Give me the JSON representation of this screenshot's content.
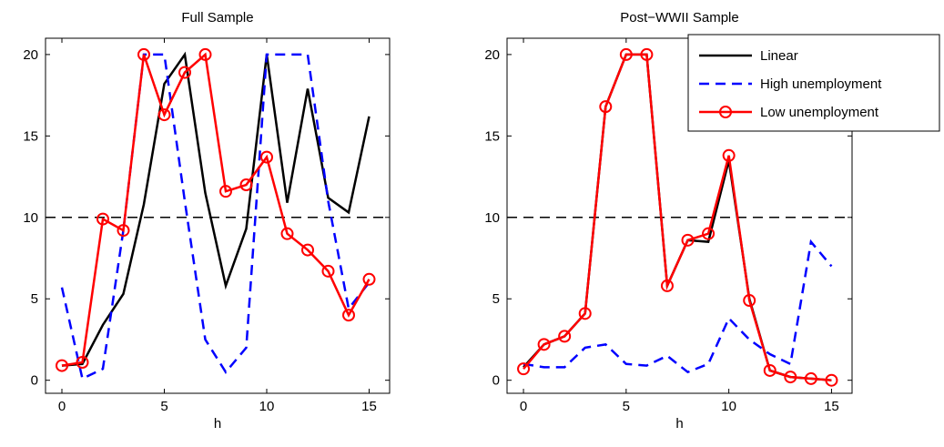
{
  "chart_data": [
    {
      "type": "line",
      "title": "Full Sample",
      "xlabel": "h",
      "ylabel": "",
      "xlim": [
        -0.8,
        16
      ],
      "ylim": [
        -0.8,
        21
      ],
      "xticks": [
        0,
        5,
        10,
        15
      ],
      "yticks": [
        0,
        5,
        10,
        15,
        20
      ],
      "x": [
        0,
        1,
        2,
        3,
        4,
        5,
        6,
        7,
        8,
        9,
        10,
        11,
        12,
        13,
        14,
        15
      ],
      "reference_line": {
        "y": 10,
        "style": "dashed",
        "color": "#000000"
      },
      "series": [
        {
          "name": "Linear",
          "color": "#000000",
          "style": "solid",
          "marker": "none",
          "values": [
            0.9,
            1.0,
            3.4,
            5.3,
            10.8,
            18.2,
            20.0,
            11.5,
            5.8,
            9.3,
            20.0,
            10.9,
            17.9,
            11.2,
            10.3,
            16.2
          ]
        },
        {
          "name": "High unemployment",
          "color": "#0000ff",
          "style": "dashed",
          "marker": "none",
          "values": [
            5.7,
            0.1,
            0.7,
            9.2,
            20.0,
            20.0,
            11.0,
            2.5,
            0.5,
            2.0,
            20.0,
            20.0,
            20.0,
            11.0,
            4.4,
            6.0
          ]
        },
        {
          "name": "Low unemployment",
          "color": "#ff0000",
          "style": "solid",
          "marker": "circle",
          "values": [
            0.9,
            1.1,
            9.9,
            9.2,
            20.0,
            16.3,
            18.9,
            20.0,
            11.6,
            12.0,
            13.7,
            9.0,
            8.0,
            6.7,
            4.0,
            6.2
          ]
        }
      ]
    },
    {
      "type": "line",
      "title": "Post−WWII Sample",
      "xlabel": "h",
      "ylabel": "",
      "xlim": [
        -0.8,
        16
      ],
      "ylim": [
        -0.8,
        21
      ],
      "xticks": [
        0,
        5,
        10,
        15
      ],
      "yticks": [
        0,
        5,
        10,
        15,
        20
      ],
      "x": [
        0,
        1,
        2,
        3,
        4,
        5,
        6,
        7,
        8,
        9,
        10,
        11,
        12,
        13,
        14,
        15
      ],
      "reference_line": {
        "y": 10,
        "style": "dashed",
        "color": "#000000"
      },
      "legend": {
        "placement": "top-right",
        "entries": [
          "Linear",
          "High unemployment",
          "Low unemployment"
        ]
      },
      "series": [
        {
          "name": "Linear",
          "color": "#000000",
          "style": "solid",
          "marker": "none",
          "values": [
            0.8,
            2.2,
            2.7,
            4.1,
            16.8,
            20.0,
            20.0,
            5.8,
            8.6,
            8.5,
            13.5,
            5.0,
            0.6,
            0.2,
            0.1,
            0.0
          ]
        },
        {
          "name": "High unemployment",
          "color": "#0000ff",
          "style": "dashed",
          "marker": "none",
          "values": [
            1.0,
            0.8,
            0.8,
            2.0,
            2.2,
            1.0,
            0.9,
            1.5,
            0.5,
            1.0,
            3.8,
            2.5,
            1.6,
            1.0,
            8.5,
            7.0
          ]
        },
        {
          "name": "Low unemployment",
          "color": "#ff0000",
          "style": "solid",
          "marker": "circle",
          "values": [
            0.7,
            2.2,
            2.7,
            4.1,
            16.8,
            20.0,
            20.0,
            5.8,
            8.6,
            9.0,
            13.8,
            4.9,
            0.6,
            0.2,
            0.1,
            0.0
          ]
        }
      ]
    }
  ]
}
